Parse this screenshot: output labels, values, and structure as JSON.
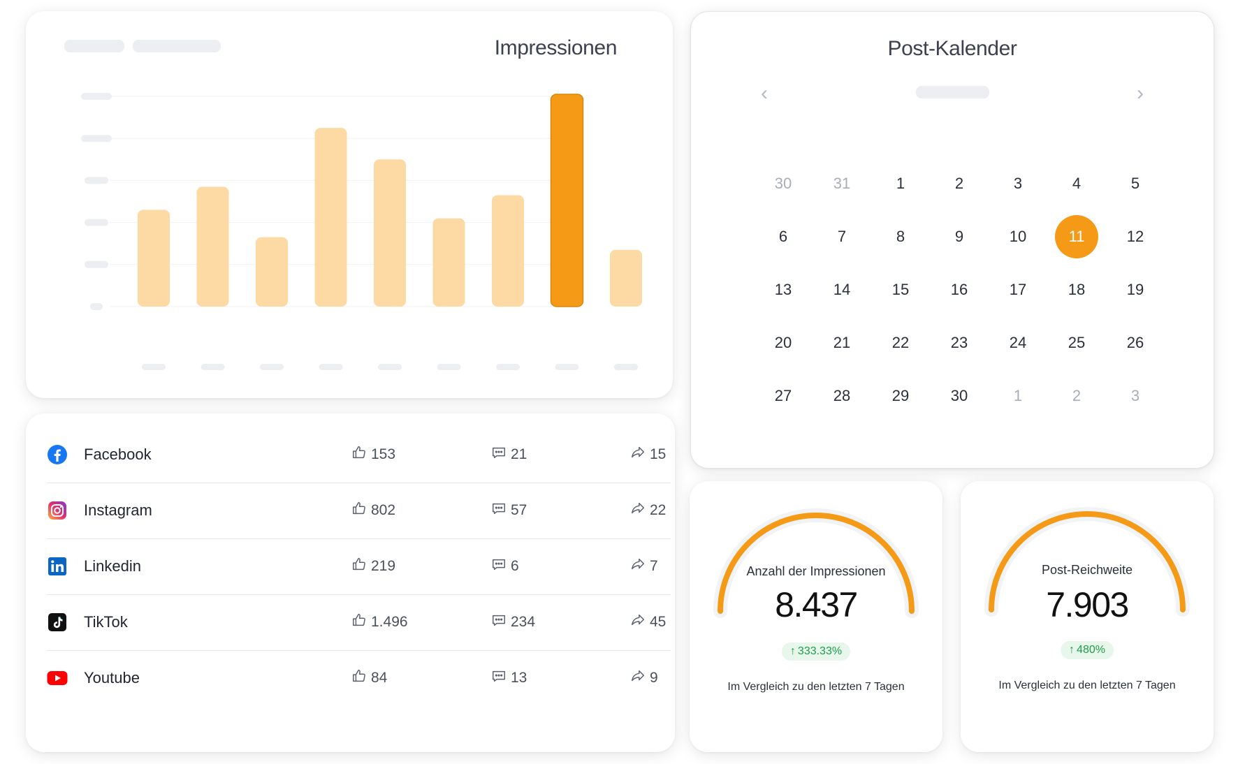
{
  "chart_card": {
    "title": "Impressionen"
  },
  "chart_data": {
    "type": "bar",
    "title": "Impressionen",
    "categories": [
      "",
      "",
      "",
      "",
      "",
      "",
      "",
      "",
      ""
    ],
    "values": [
      46,
      57,
      33,
      85,
      70,
      42,
      53,
      101,
      27
    ],
    "highlight_index": 7,
    "ylim": [
      0,
      100
    ],
    "grid": true,
    "colors": {
      "bar": "#fdd9a4",
      "highlight": "#f59a17"
    }
  },
  "calendar": {
    "title": "Post-Kalender",
    "prev_icon": "chevron-left-icon",
    "next_icon": "chevron-right-icon",
    "prev_glyph": "‹",
    "next_glyph": "›",
    "days": [
      {
        "d": "30",
        "muted": true
      },
      {
        "d": "31",
        "muted": true
      },
      {
        "d": "1"
      },
      {
        "d": "2"
      },
      {
        "d": "3"
      },
      {
        "d": "4"
      },
      {
        "d": "5"
      },
      {
        "d": "6"
      },
      {
        "d": "7"
      },
      {
        "d": "8"
      },
      {
        "d": "9"
      },
      {
        "d": "10"
      },
      {
        "d": "11",
        "selected": true
      },
      {
        "d": "12"
      },
      {
        "d": "13"
      },
      {
        "d": "14"
      },
      {
        "d": "15"
      },
      {
        "d": "16"
      },
      {
        "d": "17"
      },
      {
        "d": "18"
      },
      {
        "d": "19"
      },
      {
        "d": "20"
      },
      {
        "d": "21"
      },
      {
        "d": "22"
      },
      {
        "d": "23"
      },
      {
        "d": "24"
      },
      {
        "d": "25"
      },
      {
        "d": "26"
      },
      {
        "d": "27"
      },
      {
        "d": "28"
      },
      {
        "d": "29"
      },
      {
        "d": "30"
      },
      {
        "d": "1",
        "muted": true
      },
      {
        "d": "2",
        "muted": true
      },
      {
        "d": "3",
        "muted": true
      }
    ],
    "accent": "#f59a17"
  },
  "social": {
    "rows": [
      {
        "name": "Facebook",
        "icon": "facebook-icon",
        "likes": "153",
        "comments": "21",
        "shares": "15"
      },
      {
        "name": "Instagram",
        "icon": "instagram-icon",
        "likes": "802",
        "comments": "57",
        "shares": "22"
      },
      {
        "name": "Linkedin",
        "icon": "linkedin-icon",
        "likes": "219",
        "comments": "6",
        "shares": "7"
      },
      {
        "name": "TikTok",
        "icon": "tiktok-icon",
        "likes": "1.496",
        "comments": "234",
        "shares": "45"
      },
      {
        "name": "Youtube",
        "icon": "youtube-icon",
        "likes": "84",
        "comments": "13",
        "shares": "9"
      }
    ],
    "icon_names": {
      "likes": "thumbs-up-icon",
      "comments": "comment-icon",
      "shares": "share-icon"
    }
  },
  "gauges": [
    {
      "label": "Anzahl der Impressionen",
      "value": "8.437",
      "change": "333.33%",
      "compare": "Im Vergleich zu den letzten 7 Tagen"
    },
    {
      "label": "Post-Reichweite",
      "value": "7.903",
      "change": "480%",
      "compare": "Im Vergleich zu den letzten 7 Tagen"
    }
  ],
  "colors": {
    "accent": "#f59a17",
    "accent_light": "#fdd9a4",
    "positive": "#1f9d47"
  }
}
